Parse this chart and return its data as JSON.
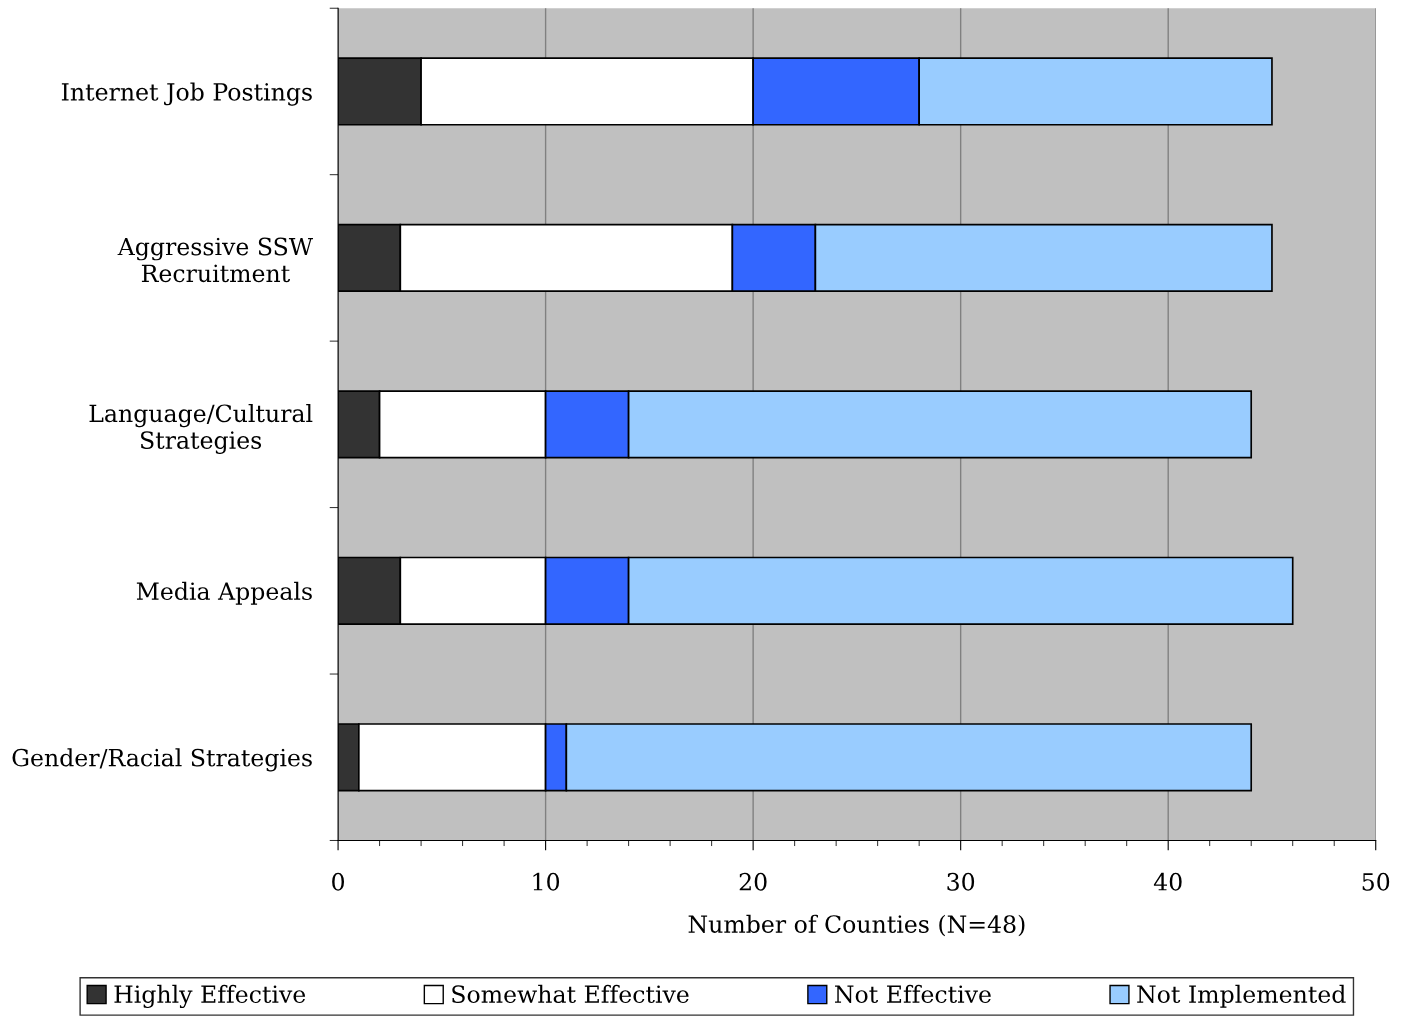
{
  "chart_data": {
    "type": "bar",
    "orientation": "horizontal",
    "stacked": true,
    "xlabel": "Number of Counties (N=48)",
    "categories": [
      "Internet Job Postings",
      "Aggressive SSW\nRecruitment",
      "Language/Cultural\nStrategies",
      "Media Appeals",
      "Gender/Racial Strategies"
    ],
    "series": [
      {
        "name": "Highly Effective",
        "color": "#333333",
        "values": [
          4,
          3,
          2,
          3,
          1
        ]
      },
      {
        "name": "Somewhat Effective",
        "color": "#ffffff",
        "values": [
          16,
          16,
          8,
          7,
          9
        ]
      },
      {
        "name": "Not Effective",
        "color": "#3366ff",
        "values": [
          8,
          4,
          4,
          4,
          1
        ]
      },
      {
        "name": "Not Implemented",
        "color": "#99ccff",
        "values": [
          17,
          22,
          30,
          32,
          33
        ]
      }
    ],
    "xlim": [
      0,
      50
    ],
    "xticks": [
      0,
      {
        "value": 2,
        "label": null
      },
      {
        "value": 4,
        "label": null
      },
      {
        "value": 6,
        "label": null
      },
      {
        "value": 8,
        "label": null
      },
      10,
      {
        "value": 12,
        "label": null
      },
      {
        "value": 14,
        "label": null
      },
      {
        "value": 16,
        "label": null
      },
      {
        "value": 18,
        "label": null
      },
      20,
      {
        "value": 22,
        "label": null
      },
      {
        "value": 24,
        "label": null
      },
      {
        "value": 26,
        "label": null
      },
      {
        "value": 28,
        "label": null
      },
      30,
      {
        "value": 32,
        "label": null
      },
      {
        "value": 34,
        "label": null
      },
      {
        "value": 36,
        "label": null
      },
      {
        "value": 38,
        "label": null
      },
      40,
      {
        "value": 42,
        "label": null
      },
      {
        "value": 44,
        "label": null
      },
      {
        "value": 46,
        "label": null
      },
      {
        "value": 48,
        "label": null
      },
      50
    ],
    "grid": "x",
    "legend": "bottom"
  }
}
